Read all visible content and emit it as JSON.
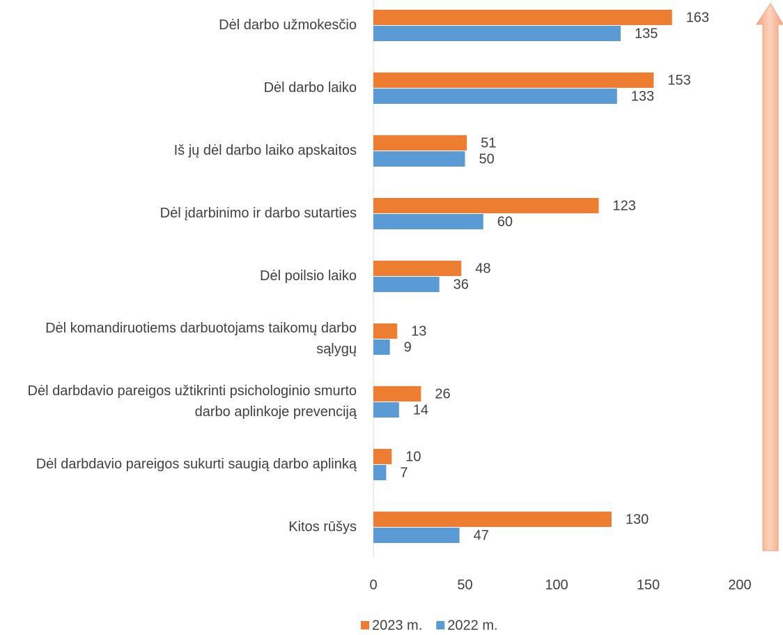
{
  "chart_data": {
    "type": "bar",
    "orientation": "horizontal",
    "categories": [
      "Dėl darbo užmokesčio",
      "Dėl darbo laiko",
      "Iš jų dėl darbo laiko apskaitos",
      "Dėl įdarbinimo ir darbo sutarties",
      "Dėl poilsio laiko",
      "Dėl komandiruotiems darbuotojams taikomų darbo sąlygų",
      "Dėl darbdavio pareigos užtikrinti psichologinio smurto darbo aplinkoje prevenciją",
      "Dėl darbdavio pareigos sukurti saugią darbo aplinką",
      "Kitos rūšys"
    ],
    "series": [
      {
        "name": "2023 m.",
        "color": "#ed7d31",
        "values": [
          163,
          153,
          51,
          123,
          48,
          13,
          26,
          10,
          130
        ]
      },
      {
        "name": "2022 m.",
        "color": "#5b9bd5",
        "values": [
          135,
          133,
          50,
          60,
          36,
          9,
          14,
          7,
          47
        ]
      }
    ],
    "xlim": [
      0,
      200
    ],
    "xticks": [
      0,
      50,
      100,
      150,
      200
    ],
    "grid": false,
    "legend": "bottom"
  }
}
